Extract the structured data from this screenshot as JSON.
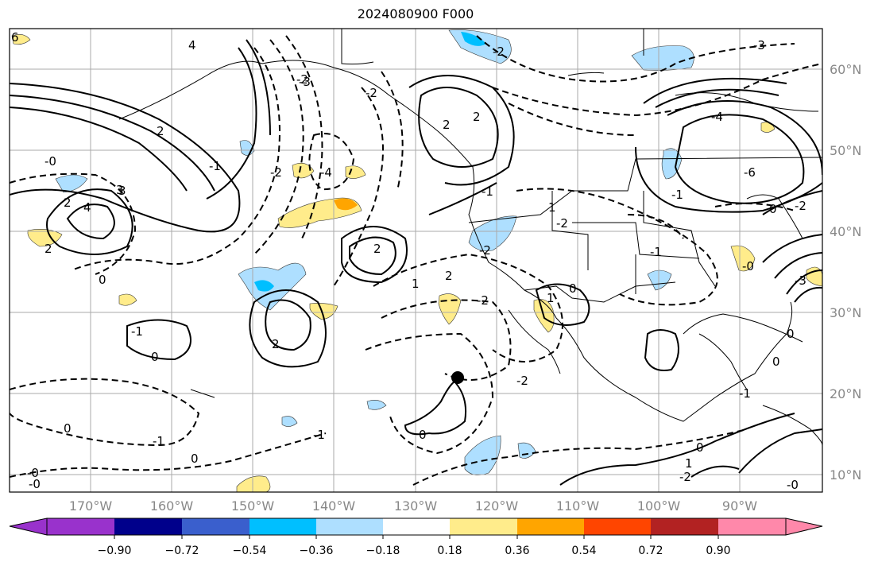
{
  "title": "2024080900 F000",
  "map": {
    "projection": "lat-lon",
    "lat_labels": [
      "60°N",
      "50°N",
      "40°N",
      "30°N",
      "20°N",
      "10°N"
    ],
    "lon_labels": [
      "170°W",
      "160°W",
      "150°W",
      "140°W",
      "130°W",
      "120°W",
      "110°W",
      "100°W",
      "90°W"
    ],
    "gridlines": true,
    "marker": "storm-center-dot",
    "contour_labels": [
      "6",
      "4",
      "3",
      "2",
      "-2",
      "-3",
      "2",
      "-2",
      "2",
      "-0",
      "0",
      "-2",
      "-4",
      "2",
      "3",
      "4",
      "2",
      "-1",
      "-2",
      "2",
      "-3",
      "-4",
      "-6",
      "0",
      "-1",
      "-2",
      "-2",
      "0",
      "1",
      "-1",
      "-0",
      "2",
      "-2",
      "-1",
      "0",
      "-1",
      "0",
      "-0",
      "1",
      "0",
      "-1",
      "2",
      "-3",
      "0",
      "-0",
      "0",
      "-2",
      "-1",
      "-2",
      "1",
      "-1",
      "-0",
      "0",
      "0",
      "-2",
      "1"
    ]
  },
  "colorbar": {
    "ticks": [
      "−0.90",
      "−0.72",
      "−0.54",
      "−0.36",
      "−0.18",
      "0.18",
      "0.36",
      "0.54",
      "0.72",
      "0.90"
    ],
    "colors": [
      "#9932CC",
      "#00008B",
      "#3A5FCD",
      "#00BFFF",
      "#AEDFFF",
      "#FFFFFF",
      "#FFEC8B",
      "#FFA500",
      "#FF4500",
      "#B22222",
      "#FF88AA"
    ]
  }
}
